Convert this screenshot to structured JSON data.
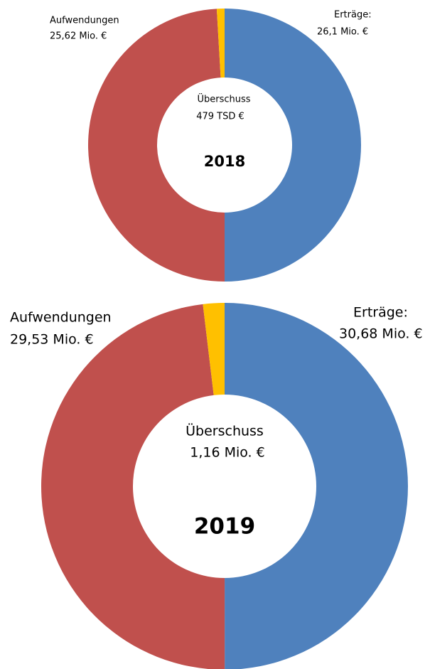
{
  "chart_data": [
    {
      "type": "donut",
      "title": "2018",
      "categories": [
        "Erträge:",
        "Aufwendungen",
        "Überschuss"
      ],
      "values": [
        26.1,
        25.62,
        0.479
      ],
      "value_labels": [
        "26,1 Mio. €",
        "25,62 Mio. €",
        "479 TSD €"
      ],
      "colors": [
        "#4f81bd",
        "#c0504d",
        "#ffc000"
      ]
    },
    {
      "type": "donut",
      "title": "2019",
      "categories": [
        "Erträge:",
        "Aufwendungen",
        "Überschuss"
      ],
      "values": [
        30.68,
        29.53,
        1.16
      ],
      "value_labels": [
        "30,68 Mio. €",
        "29,53 Mio. €",
        "1,16 Mio. €"
      ],
      "colors": [
        "#4f81bd",
        "#c0504d",
        "#ffc000"
      ]
    }
  ]
}
